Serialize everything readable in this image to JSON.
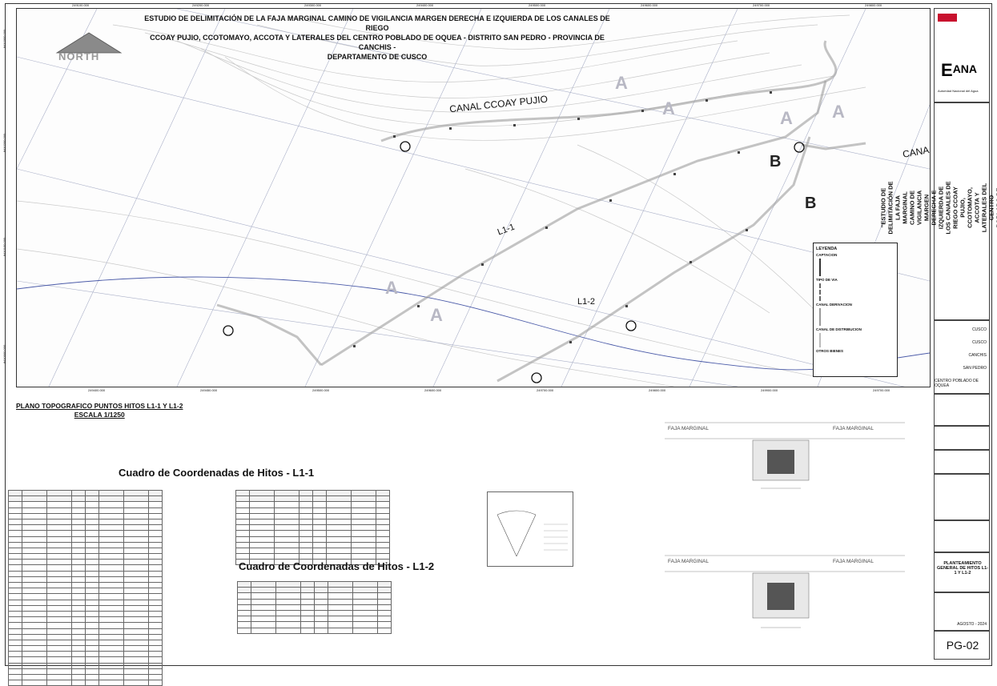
{
  "map": {
    "title": "ESTUDIO DE DELIMITACIÓN DE LA FAJA MARGINAL CAMINO DE VIGILANCIA MARGEN DERECHA E IZQUIERDA DE LOS CANALES DE RIEGO\nCCOAY PUJIO, CCOTOMAYO, ACCOTA Y LATERALES DEL CENTRO POBLADO DE OQUEA - DISTRITO SAN PEDRO - PROVINCIA DE CANCHIS -\nDEPARTAMENTO DE CUSCO",
    "north_label": "NORTH",
    "canal_label": "CANAL CCOAY PUJIO",
    "canal_label_right": "CANA",
    "line_l1_1": "L1-1",
    "line_l1_2": "L1-2",
    "zone_a": "A",
    "zone_b": "B",
    "x_ticks": [
      "249100.000",
      "249200.000",
      "249300.000",
      "249400.000",
      "249500.000",
      "249600.000",
      "249700.000",
      "249800.000",
      "249900.000"
    ],
    "x_ticks_bottom": [
      "249400.000",
      "249450.000",
      "249500.000",
      "249600.000",
      "249700.000",
      "249800.000",
      "249900.000",
      "249700.000"
    ],
    "y_ticks": [
      "8410300.000",
      "8410200.000",
      "8410100.000",
      "8410000.000",
      "8409900.000"
    ],
    "legend": {
      "title": "LEYENDA",
      "captacion": "CAPTACION",
      "tipo_via": "TIPO DE VIA",
      "canal_derivacion": "CANAL DERIVACION",
      "canal_distribucion": "CANAL DE DISTRIBUCION",
      "otros_bienes": "OTROS BIENES"
    }
  },
  "plano": {
    "title": "PLANO TOPOGRAFICO PUNTOS HITOS L1-1 Y L1-2",
    "scale": "ESCALA 1/1250"
  },
  "table1": {
    "title": "Cuadro de Coordenadas de Hitos - L1-1"
  },
  "table2": {
    "title": "Cuadro de Coordenadas de Hitos - L1-2"
  },
  "sections": {
    "faja_left": "FAJA MARGINAL",
    "faja_right": "FAJA MARGINAL"
  },
  "sidebar": {
    "agency": "ANA",
    "agency_sub": "Autoridad Nacional del Agua",
    "project_title": "\"ESTUDIO DE DELIMITACIÓN DE LA FAJA MARGINAL CAMINO DE VIGILANCIA MARGEN DERECHA E IZQUIERDA DE LOS CANALES DE RIEGO CCOAY PUJIO, CCOTOMAYO, ACCOTA Y LATERALES DEL CENTRO POBLADO DE OQUEA - DISTRITO SAN PEDRO - PROVINCIA DE CANCHIS - DEPARTAMENTO DE CUSCO\"",
    "region": "CUSCO",
    "departamento": "CUSCO",
    "provincia": "CANCHIS",
    "distrito": "SAN PEDRO",
    "centro": "CENTRO POBLADO DE OQUEA",
    "lamina_title": "PLANTEAMIENTO GENERAL DE HITOS L1-1 Y L1-2",
    "fecha": "AGOSTO - 2024",
    "sheet": "PG-02"
  }
}
